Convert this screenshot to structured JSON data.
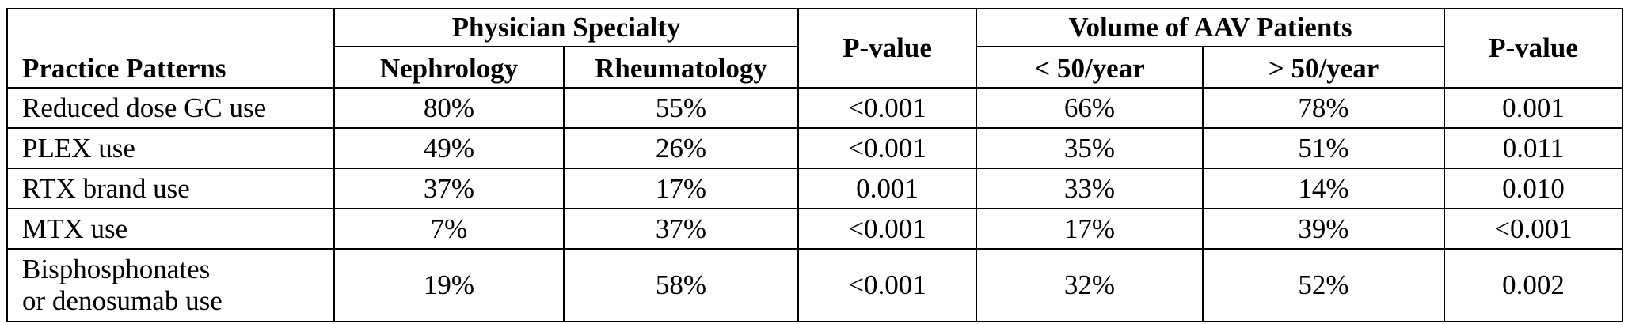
{
  "table": {
    "group_headers": {
      "physician_specialty": "Physician Specialty",
      "p_value_1": "P-value",
      "volume": "Volume of AAV Patients",
      "p_value_2": "P-value"
    },
    "sub_headers": {
      "practice_patterns": "Practice Patterns",
      "nephrology": "Nephrology",
      "rheumatology": "Rheumatology",
      "lt_50": "< 50/year",
      "gt_50": "> 50/year"
    },
    "rows": [
      {
        "pattern": "Reduced dose GC use",
        "nephrology": "80%",
        "rheumatology": "55%",
        "p1": "<0.001",
        "lt50": "66%",
        "gt50": "78%",
        "p2": "0.001"
      },
      {
        "pattern": "PLEX use",
        "nephrology": "49%",
        "rheumatology": "26%",
        "p1": "<0.001",
        "lt50": "35%",
        "gt50": "51%",
        "p2": "0.011"
      },
      {
        "pattern": "RTX brand use",
        "nephrology": "37%",
        "rheumatology": "17%",
        "p1": "0.001",
        "lt50": "33%",
        "gt50": "14%",
        "p2": "0.010"
      },
      {
        "pattern": "MTX use",
        "nephrology": "7%",
        "rheumatology": "37%",
        "p1": "<0.001",
        "lt50": "17%",
        "gt50": "39%",
        "p2": "<0.001"
      },
      {
        "pattern_line1": "Bisphosphonates",
        "pattern_line2": "or denosumab use",
        "nephrology": "19%",
        "rheumatology": "58%",
        "p1": "<0.001",
        "lt50": "32%",
        "gt50": "52%",
        "p2": "0.002"
      }
    ]
  }
}
